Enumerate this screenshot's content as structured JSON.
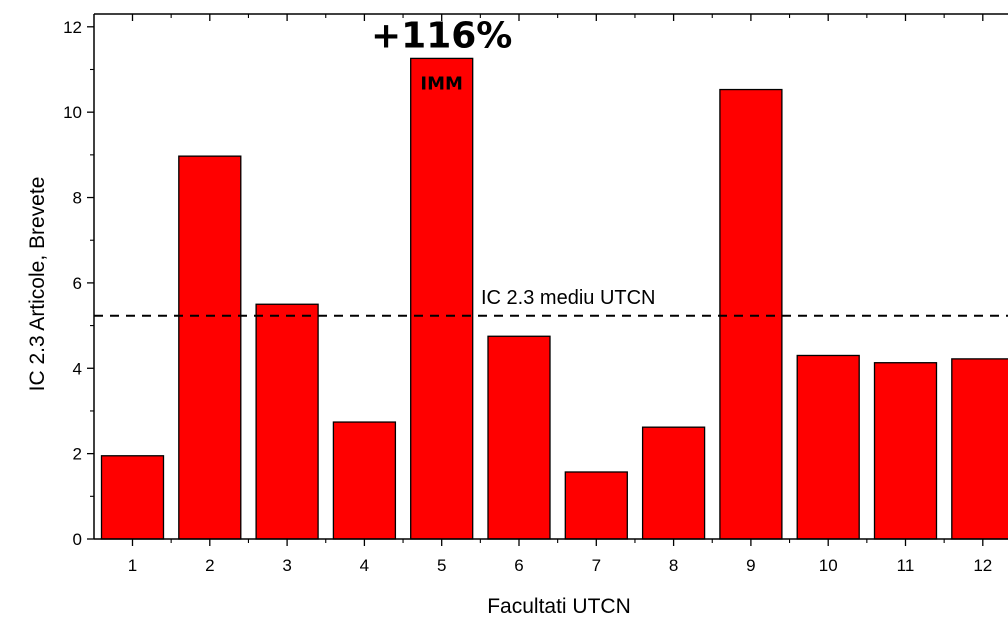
{
  "chart_data": {
    "type": "bar",
    "categories": [
      "1",
      "2",
      "3",
      "4",
      "5",
      "6",
      "7",
      "8",
      "9",
      "10",
      "11",
      "12"
    ],
    "values": [
      1.95,
      8.97,
      5.5,
      2.74,
      11.26,
      4.75,
      1.57,
      2.62,
      10.53,
      4.3,
      4.13,
      4.22
    ],
    "xlabel": "Facultati UTCN",
    "ylabel": "IC 2.3 Articole, Brevete",
    "ylim": [
      0,
      12.3
    ],
    "yticks": [
      0,
      2,
      4,
      6,
      8,
      10,
      12
    ],
    "yticks_labels": [
      "0",
      "2",
      "4",
      "6",
      "8",
      "10",
      "12"
    ],
    "bar_color": "#ff0000",
    "reference_line": {
      "value": 5.23,
      "label": "IC 2.3 mediu UTCN",
      "style": "dashed"
    },
    "annotations": [
      {
        "text": "+116%",
        "category": "5"
      },
      {
        "text": "IMM",
        "category": "5"
      }
    ],
    "grid": false,
    "legend": "none"
  }
}
